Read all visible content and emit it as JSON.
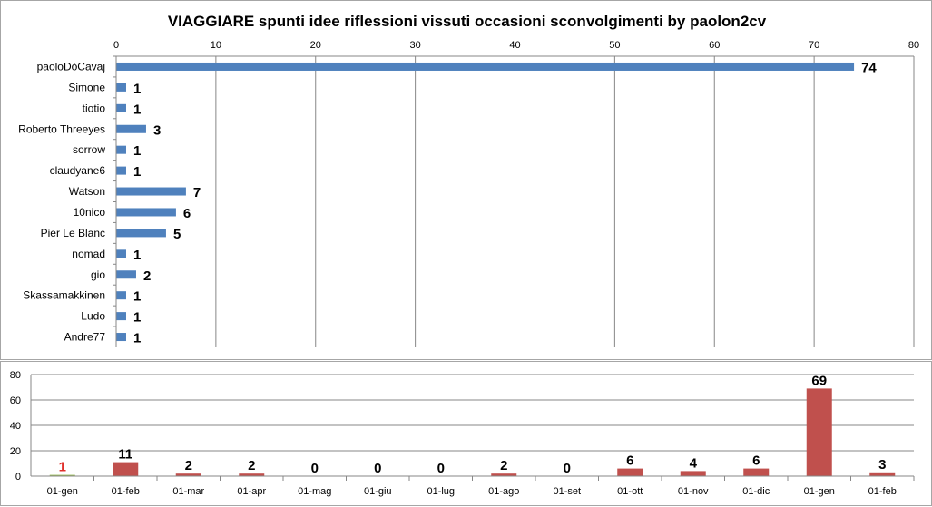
{
  "chart_data": [
    {
      "type": "bar",
      "orientation": "horizontal",
      "title": "VIAGGIARE  spunti  idee  riflessioni  vissuti  occasioni  sconvolgimenti  by  paolon2cv",
      "categories": [
        "paoloDòCavaj",
        "Simone",
        "tiotio",
        "Roberto Threeyes",
        "sorrow",
        "claudyane6",
        "Watson",
        "10nico",
        "Pier Le Blanc",
        "nomad",
        "gio",
        "Skassamakkinen",
        "Ludo",
        "Andre77"
      ],
      "values": [
        74,
        1,
        1,
        3,
        1,
        1,
        7,
        6,
        5,
        1,
        2,
        1,
        1,
        1
      ],
      "xlim": [
        0,
        80
      ],
      "xticks": [
        "0",
        "10",
        "20",
        "30",
        "40",
        "50",
        "60",
        "70",
        "80"
      ],
      "xaxis_position": "top",
      "grid": true,
      "bar_color": "#4f81bd",
      "data_labels": true
    },
    {
      "type": "bar",
      "categories": [
        "01-gen",
        "01-feb",
        "01-mar",
        "01-apr",
        "01-mag",
        "01-giu",
        "01-lug",
        "01-ago",
        "01-set",
        "01-ott",
        "01-nov",
        "01-dic",
        "01-gen",
        "01-feb"
      ],
      "values": [
        1,
        11,
        2,
        2,
        0,
        0,
        0,
        2,
        0,
        6,
        4,
        6,
        69,
        3
      ],
      "ylim": [
        0,
        80
      ],
      "yticks": [
        "0",
        "20",
        "40",
        "60",
        "80"
      ],
      "grid": true,
      "bar_color": "#c0504d",
      "first_bar_color": "#9bbb59",
      "first_label_color": "#e0302b",
      "data_labels": true
    }
  ]
}
